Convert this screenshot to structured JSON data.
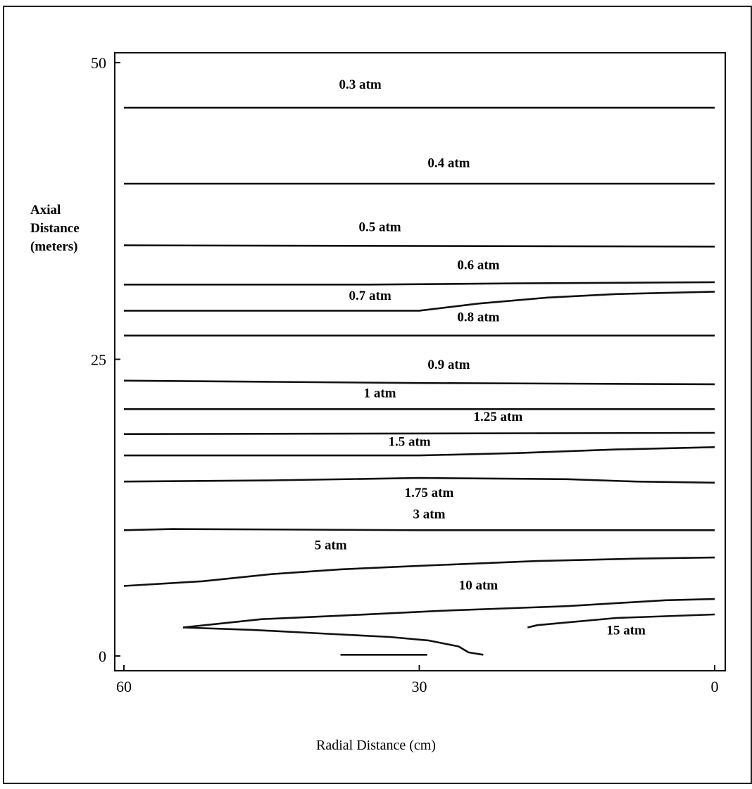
{
  "chart_data": {
    "type": "line",
    "title": "",
    "xlabel": "Radial Distance (cm)",
    "ylabel": [
      "Axial",
      "Distance",
      "(meters)"
    ],
    "xlim": [
      60,
      0
    ],
    "ylim": [
      0,
      50
    ],
    "x_ticks": [
      60,
      30,
      0
    ],
    "y_ticks": [
      50,
      25,
      0
    ],
    "grid": false,
    "legend": "none",
    "series": [
      {
        "name": "0.3 atm",
        "points": [
          [
            60,
            46.2
          ],
          [
            0,
            46.2
          ]
        ]
      },
      {
        "name": "0.4 atm",
        "points": [
          [
            60,
            39.8
          ],
          [
            0,
            39.8
          ]
        ]
      },
      {
        "name": "0.5 atm",
        "points": [
          [
            60,
            34.6
          ],
          [
            0,
            34.5
          ]
        ]
      },
      {
        "name": "0.6 atm",
        "points": [
          [
            60,
            31.3
          ],
          [
            35,
            31.3
          ],
          [
            20,
            31.4
          ],
          [
            0,
            31.5
          ]
        ]
      },
      {
        "name": "0.7 atm",
        "points": [
          [
            60,
            29.1
          ],
          [
            40,
            29.1
          ],
          [
            30,
            29.1
          ],
          [
            24,
            29.7
          ],
          [
            17,
            30.2
          ],
          [
            10,
            30.5
          ],
          [
            0,
            30.7
          ]
        ]
      },
      {
        "name": "0.8 atm",
        "points": [
          [
            60,
            27.0
          ],
          [
            0,
            27.0
          ]
        ]
      },
      {
        "name": "0.9 atm",
        "points": [
          [
            60,
            23.2
          ],
          [
            45,
            23.1
          ],
          [
            30,
            23.0
          ],
          [
            0,
            22.9
          ]
        ]
      },
      {
        "name": "1 atm",
        "points": [
          [
            60,
            20.8
          ],
          [
            0,
            20.8
          ]
        ]
      },
      {
        "name": "1.25 atm",
        "points": [
          [
            60,
            18.7
          ],
          [
            0,
            18.8
          ]
        ]
      },
      {
        "name": "1.5 atm",
        "points": [
          [
            60,
            16.9
          ],
          [
            40,
            16.9
          ],
          [
            30,
            16.9
          ],
          [
            20,
            17.1
          ],
          [
            10,
            17.4
          ],
          [
            0,
            17.6
          ]
        ]
      },
      {
        "name": "1.75 atm",
        "points": [
          [
            60,
            14.7
          ],
          [
            45,
            14.8
          ],
          [
            30,
            15.0
          ],
          [
            15,
            14.9
          ],
          [
            8,
            14.7
          ],
          [
            0,
            14.6
          ]
        ]
      },
      {
        "name": "3 atm",
        "points": [
          [
            60,
            10.6
          ],
          [
            55,
            10.7
          ],
          [
            30,
            10.6
          ],
          [
            0,
            10.6
          ]
        ]
      },
      {
        "name": "5 atm",
        "points": [
          [
            60,
            5.9
          ],
          [
            52,
            6.3
          ],
          [
            45,
            6.9
          ],
          [
            38,
            7.3
          ],
          [
            30,
            7.6
          ],
          [
            18,
            8.0
          ],
          [
            8,
            8.2
          ],
          [
            0,
            8.3
          ]
        ]
      },
      {
        "name": "10 atm",
        "points": [
          [
            54,
            2.4
          ],
          [
            46,
            3.1
          ],
          [
            38,
            3.4
          ],
          [
            28,
            3.8
          ],
          [
            15,
            4.2
          ],
          [
            5,
            4.7
          ],
          [
            0,
            4.8
          ]
        ]
      },
      {
        "name": "15 atm",
        "points": [
          [
            0,
            3.5
          ],
          [
            10,
            3.2
          ],
          [
            18,
            2.6
          ],
          [
            19,
            2.4
          ]
        ]
      },
      {
        "name": "",
        "points": [
          [
            54,
            2.4
          ],
          [
            47,
            2.2
          ],
          [
            40,
            1.9
          ],
          [
            33,
            1.6
          ],
          [
            29,
            1.3
          ],
          [
            26,
            0.8
          ],
          [
            25,
            0.3
          ],
          [
            23.5,
            0.1
          ]
        ]
      },
      {
        "name": "",
        "points": [
          [
            38,
            0.1
          ],
          [
            30,
            0.1
          ],
          [
            29.2,
            0.1
          ]
        ]
      }
    ],
    "annotations": [
      {
        "text": "0.3 atm",
        "x": 36,
        "y": 47.8
      },
      {
        "text": "0.4 atm",
        "x": 27,
        "y": 41.2
      },
      {
        "text": "0.5 atm",
        "x": 34,
        "y": 35.8
      },
      {
        "text": "0.6 atm",
        "x": 24,
        "y": 32.6
      },
      {
        "text": "0.7 atm",
        "x": 35,
        "y": 30.0
      },
      {
        "text": "0.8 atm",
        "x": 24,
        "y": 28.2
      },
      {
        "text": "0.9 atm",
        "x": 27,
        "y": 24.2
      },
      {
        "text": "1 atm",
        "x": 34,
        "y": 21.8
      },
      {
        "text": "1.25 atm",
        "x": 22,
        "y": 19.8
      },
      {
        "text": "1.5 atm",
        "x": 31,
        "y": 17.7
      },
      {
        "text": "1.75 atm",
        "x": 29,
        "y": 13.4
      },
      {
        "text": "3 atm",
        "x": 29,
        "y": 11.6
      },
      {
        "text": "5 atm",
        "x": 39,
        "y": 9.0
      },
      {
        "text": "10 atm",
        "x": 24,
        "y": 5.6
      },
      {
        "text": "15 atm",
        "x": 9,
        "y": 1.8
      }
    ]
  }
}
